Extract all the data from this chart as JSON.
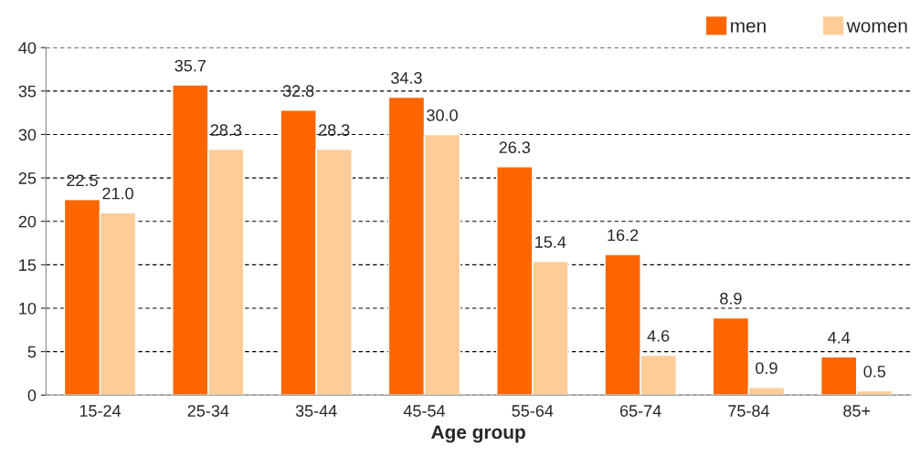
{
  "chart_data": {
    "type": "bar",
    "xlabel": "Age group",
    "categories": [
      "15-24",
      "25-34",
      "35-44",
      "45-54",
      "55-64",
      "65-74",
      "75-84",
      "85+"
    ],
    "series": [
      {
        "name": "men",
        "color": "#ff6600",
        "values": [
          22.5,
          35.7,
          32.8,
          34.3,
          26.3,
          16.2,
          8.9,
          4.4
        ],
        "value_labels": [
          "22.5",
          "35.7",
          "32.8",
          "34.3",
          "26.3",
          "16.2",
          "8.9",
          "4.4"
        ]
      },
      {
        "name": "women",
        "color": "#ffcc99",
        "values": [
          21.0,
          28.3,
          28.3,
          30.0,
          15.4,
          4.6,
          0.9,
          0.5
        ],
        "value_labels": [
          "21.0",
          "28.3",
          "28.3",
          "30.0",
          "15.4",
          "4.6",
          "0.9",
          "0.5"
        ]
      }
    ],
    "ylim": [
      0,
      40
    ],
    "yticks": [
      0,
      5,
      10,
      15,
      20,
      25,
      30,
      35,
      40
    ],
    "grid": "y",
    "legend": "top right"
  }
}
